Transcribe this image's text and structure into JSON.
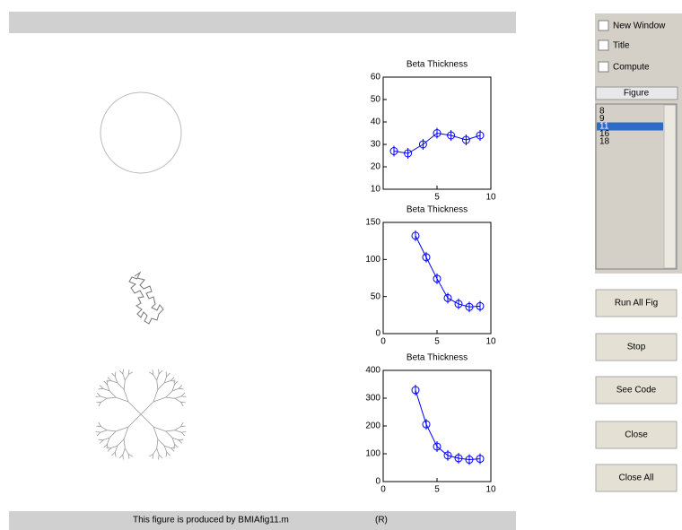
{
  "chart_data": [
    {
      "type": "line",
      "title": "Beta Thickness",
      "color": "#0000ff",
      "x": [
        1,
        2.3,
        3.7,
        5,
        6.3,
        7.7,
        9
      ],
      "values": [
        27,
        26,
        30,
        35,
        34,
        32,
        34
      ],
      "xlim": [
        0,
        10
      ],
      "ylim": [
        10,
        60
      ],
      "xticks": [
        5,
        10
      ],
      "yticks": [
        10,
        20,
        30,
        40,
        50,
        60
      ]
    },
    {
      "type": "line",
      "title": "Beta Thickness",
      "color": "#0000ff",
      "x": [
        3,
        4,
        5,
        6,
        7,
        8,
        9
      ],
      "values": [
        132,
        103,
        74,
        48,
        40,
        36,
        37
      ],
      "xlim": [
        0,
        10
      ],
      "ylim": [
        0,
        150
      ],
      "xticks": [
        0,
        5,
        10
      ],
      "yticks": [
        0,
        50,
        100,
        150
      ]
    },
    {
      "type": "line",
      "title": "Beta Thickness",
      "color": "#0000ff",
      "x": [
        3,
        4,
        5,
        6,
        7,
        8,
        9
      ],
      "values": [
        329,
        206,
        126,
        94,
        84,
        79,
        82
      ],
      "xlim": [
        0,
        10
      ],
      "ylim": [
        0,
        400
      ],
      "xticks": [
        0,
        5,
        10
      ],
      "yticks": [
        0,
        100,
        200,
        300,
        400
      ]
    }
  ],
  "footer": {
    "caption": "This figure is produced by BMIAfig11.m",
    "mark": "(R)"
  },
  "controls": {
    "checkboxes": [
      "New Window",
      "Title",
      "Compute"
    ],
    "figure_list": {
      "title": "Figure",
      "items": [
        "8",
        "9",
        "11",
        "16",
        "18"
      ],
      "selected": 2
    },
    "buttons": [
      "Run All Fig",
      "Stop",
      "See Code",
      "Close",
      "Close All"
    ]
  }
}
